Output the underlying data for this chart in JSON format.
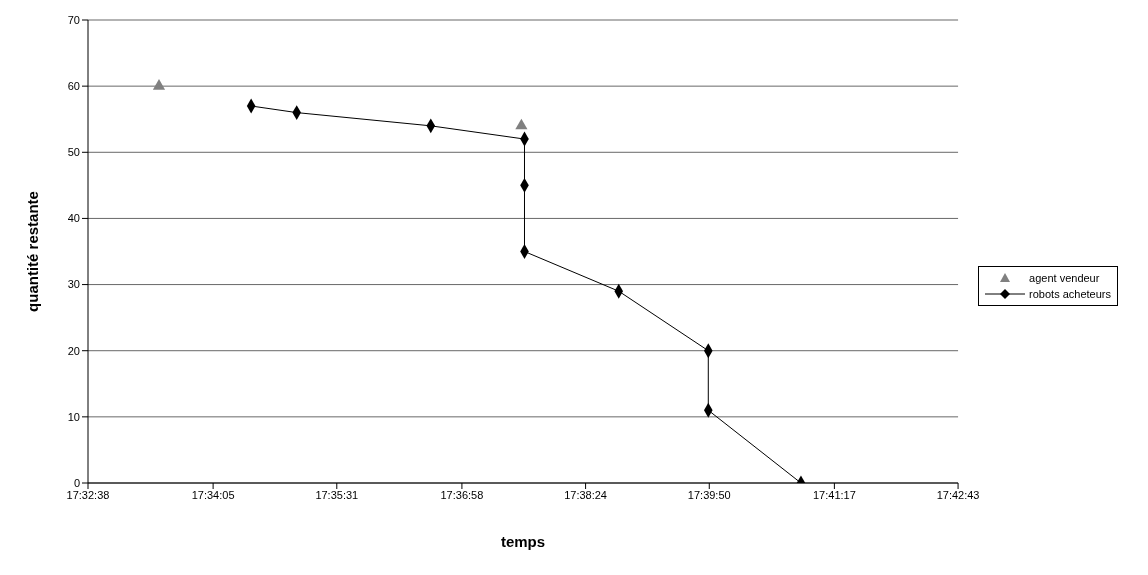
{
  "chart_data": {
    "type": "scatter",
    "xlabel": "temps",
    "ylabel": "quantité restante",
    "xlim": [
      17.543889,
      17.711944
    ],
    "xticks": [
      {
        "value": 17.543889,
        "label": "17:32:38"
      },
      {
        "value": 17.568056,
        "label": "17:34:05"
      },
      {
        "value": 17.591944,
        "label": "17:35:31"
      },
      {
        "value": 17.616111,
        "label": "17:36:58"
      },
      {
        "value": 17.64,
        "label": "17:38:24"
      },
      {
        "value": 17.663889,
        "label": "17:39:50"
      },
      {
        "value": 17.688056,
        "label": "17:41:17"
      },
      {
        "value": 17.711944,
        "label": "17:42:43"
      }
    ],
    "ylim": [
      0,
      70
    ],
    "yticks": [
      0,
      10,
      20,
      30,
      40,
      50,
      60,
      70
    ],
    "grid": "y",
    "legend": "right",
    "series": [
      {
        "name": "agent vendeur",
        "marker": "triangle",
        "color": "#808080",
        "x": [
          17.5576,
          17.6276
        ],
        "values": [
          60,
          54
        ]
      },
      {
        "name": "robots acheteurs",
        "type": "line",
        "marker": "diamond",
        "line_style": "solid",
        "color": "#000000",
        "x": [
          17.5754,
          17.5842,
          17.6101,
          17.6282,
          17.6282,
          17.6282,
          17.6464,
          17.6637,
          17.6637,
          17.6816
        ],
        "values": [
          57,
          56,
          54,
          52,
          45,
          35,
          29,
          20,
          11,
          0
        ]
      }
    ]
  }
}
